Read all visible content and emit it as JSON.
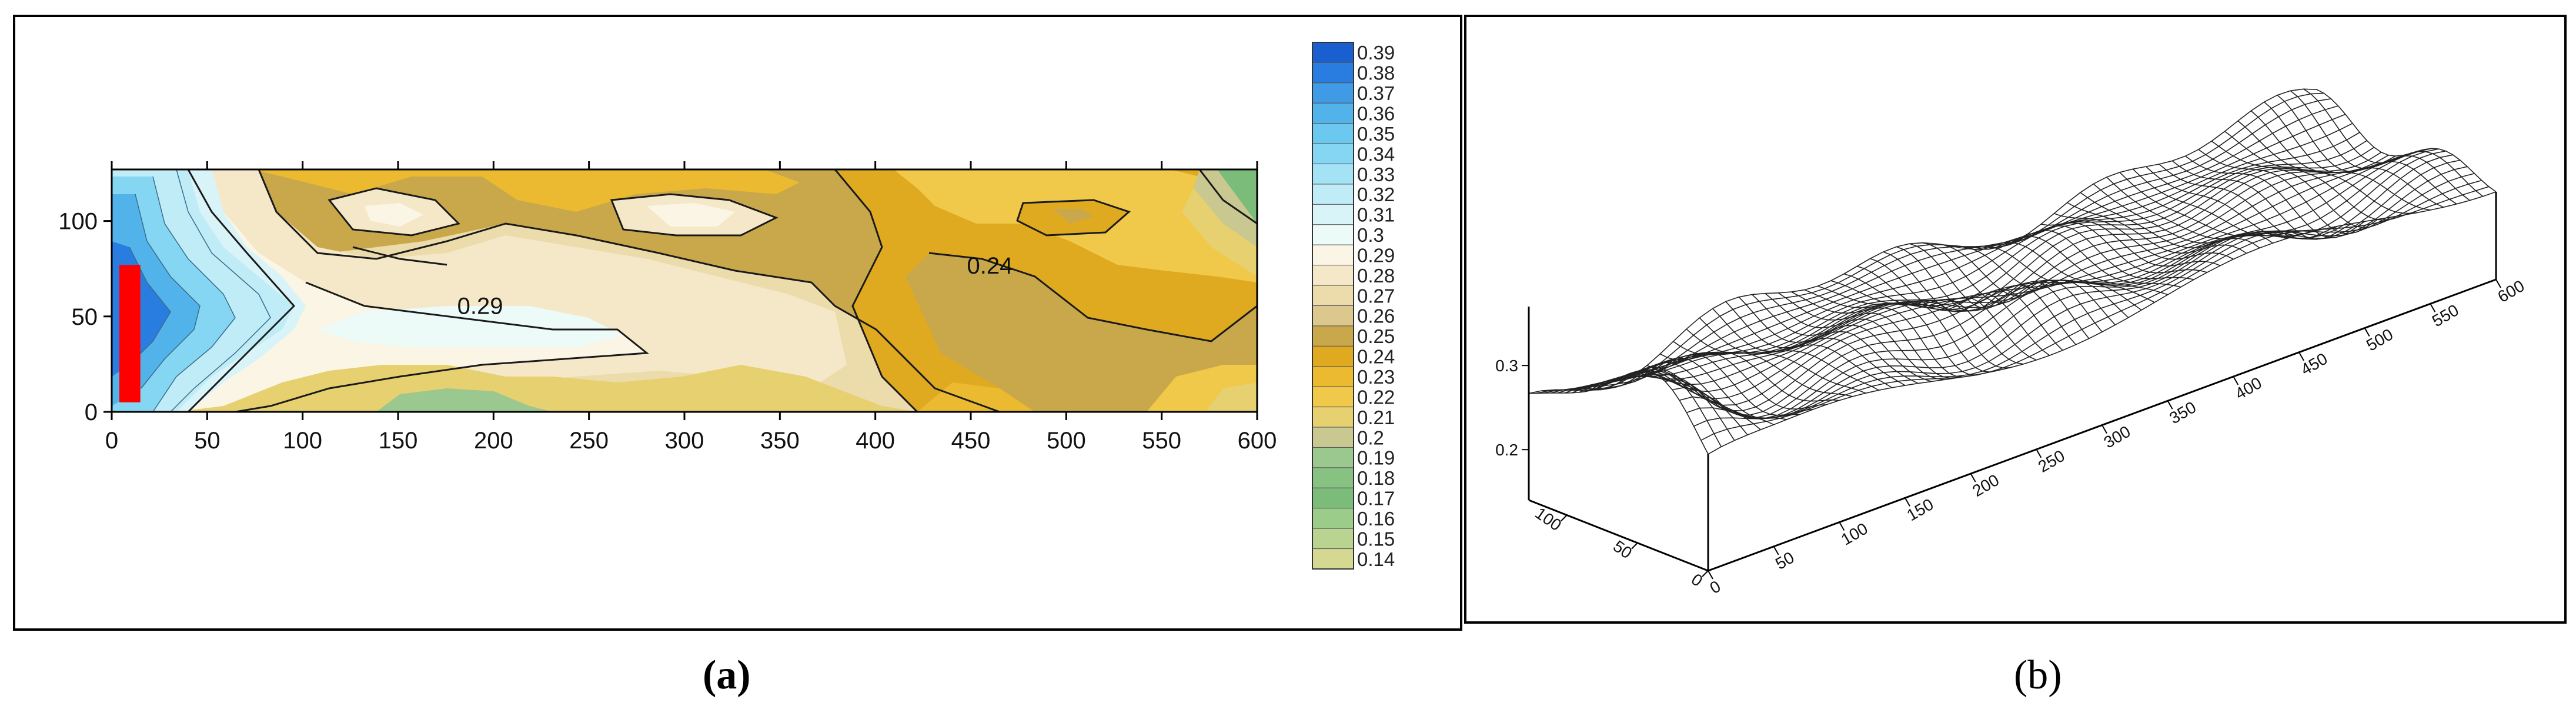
{
  "chart_data": [
    {
      "panel": "a",
      "type": "heatmap",
      "subtype": "filled contour map",
      "xlim": [
        0,
        600
      ],
      "ylim": [
        0,
        127
      ],
      "xticks": [
        0,
        50,
        100,
        150,
        200,
        250,
        300,
        350,
        400,
        450,
        500,
        550,
        600
      ],
      "yticks": [
        0,
        50,
        100
      ],
      "contour_labels": [
        {
          "text": "0.29",
          "x": 193,
          "y": 52
        },
        {
          "text": "0.24",
          "x": 460,
          "y": 73
        }
      ],
      "colorbar": {
        "levels": [
          0.39,
          0.38,
          0.37,
          0.36,
          0.35,
          0.34,
          0.33,
          0.32,
          0.31,
          0.3,
          0.29,
          0.28,
          0.27,
          0.26,
          0.25,
          0.24,
          0.23,
          0.22,
          0.21,
          0.2,
          0.19,
          0.18,
          0.17,
          0.16,
          0.15,
          0.14
        ],
        "labels": [
          "0.39",
          "0.38",
          "0.37",
          "0.36",
          "0.35",
          "0.34",
          "0.33",
          "0.32",
          "0.31",
          "0.3",
          "0.29",
          "0.28",
          "0.27",
          "0.26",
          "0.25",
          "0.24",
          "0.23",
          "0.22",
          "0.21",
          "0.2",
          "0.19",
          "0.18",
          "0.17",
          "0.16",
          "0.15",
          "0.14"
        ],
        "colors": [
          "#1a5fd0",
          "#2a7de0",
          "#3f9be6",
          "#52b2ea",
          "#6bc8ee",
          "#85d6f2",
          "#a4e2f5",
          "#c0ecf7",
          "#d8f4f8",
          "#ecfaf8",
          "#fbf5e6",
          "#f5e8c8",
          "#ecdcac",
          "#dcc88c",
          "#c8a84a",
          "#e0aa20",
          "#ecba30",
          "#f0c84a",
          "#e6d070",
          "#c8c890",
          "#9ac88e",
          "#88c282",
          "#7cbc7a",
          "#9ccc8a",
          "#b8d490",
          "#d4d890"
        ]
      },
      "marker": {
        "shape": "rectangle",
        "color": "#ff0000",
        "x": [
          4,
          15
        ],
        "y": [
          5,
          77
        ]
      }
    },
    {
      "panel": "b",
      "type": "surface",
      "subtype": "3D wireframe mesh",
      "x_ticks": [
        "0",
        "50",
        "100",
        "150",
        "200",
        "250",
        "300",
        "350",
        "400",
        "450",
        "500",
        "550",
        "600"
      ],
      "y_ticks": [
        "0",
        "50",
        "100"
      ],
      "z_ticks": [
        "0.2",
        "0.3"
      ],
      "x_range": [
        0,
        600
      ],
      "y_range": [
        0,
        127
      ],
      "z_range": [
        0.14,
        0.39
      ]
    }
  ],
  "captions": {
    "a": "(a)",
    "b": "(b)"
  }
}
